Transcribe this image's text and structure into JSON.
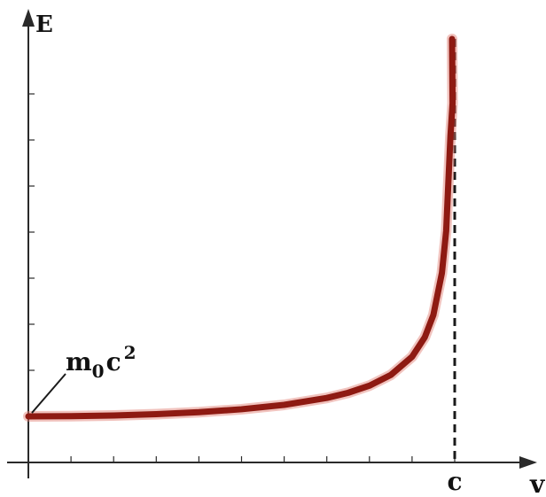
{
  "chart_data": {
    "type": "line",
    "title": "",
    "xlabel": "v",
    "ylabel": "E",
    "xlim": [
      0,
      1
    ],
    "ylim": [
      0,
      8
    ],
    "grid": false,
    "legend": "none",
    "x_special_tick_label": "c",
    "y_intercept_label": {
      "base": "m",
      "subscript": "0",
      "mid": "c",
      "superscript": "2"
    },
    "series": [
      {
        "values_x": [
          0,
          0.1,
          0.2,
          0.3,
          0.4,
          0.5,
          0.6,
          0.7,
          0.75,
          0.8,
          0.85,
          0.9,
          0.93,
          0.95,
          0.97,
          0.98,
          0.99,
          0.995
        ],
        "values_y": [
          1,
          1.005,
          1.02,
          1.048,
          1.091,
          1.155,
          1.25,
          1.4,
          1.512,
          1.667,
          1.898,
          2.294,
          2.72,
          3.203,
          4.113,
          5.025,
          7.089,
          7.8
        ]
      }
    ],
    "colors": {
      "curve": "#8e1a12",
      "curve_glow": "#e07a6e",
      "axes": "#2a2a2a"
    }
  }
}
